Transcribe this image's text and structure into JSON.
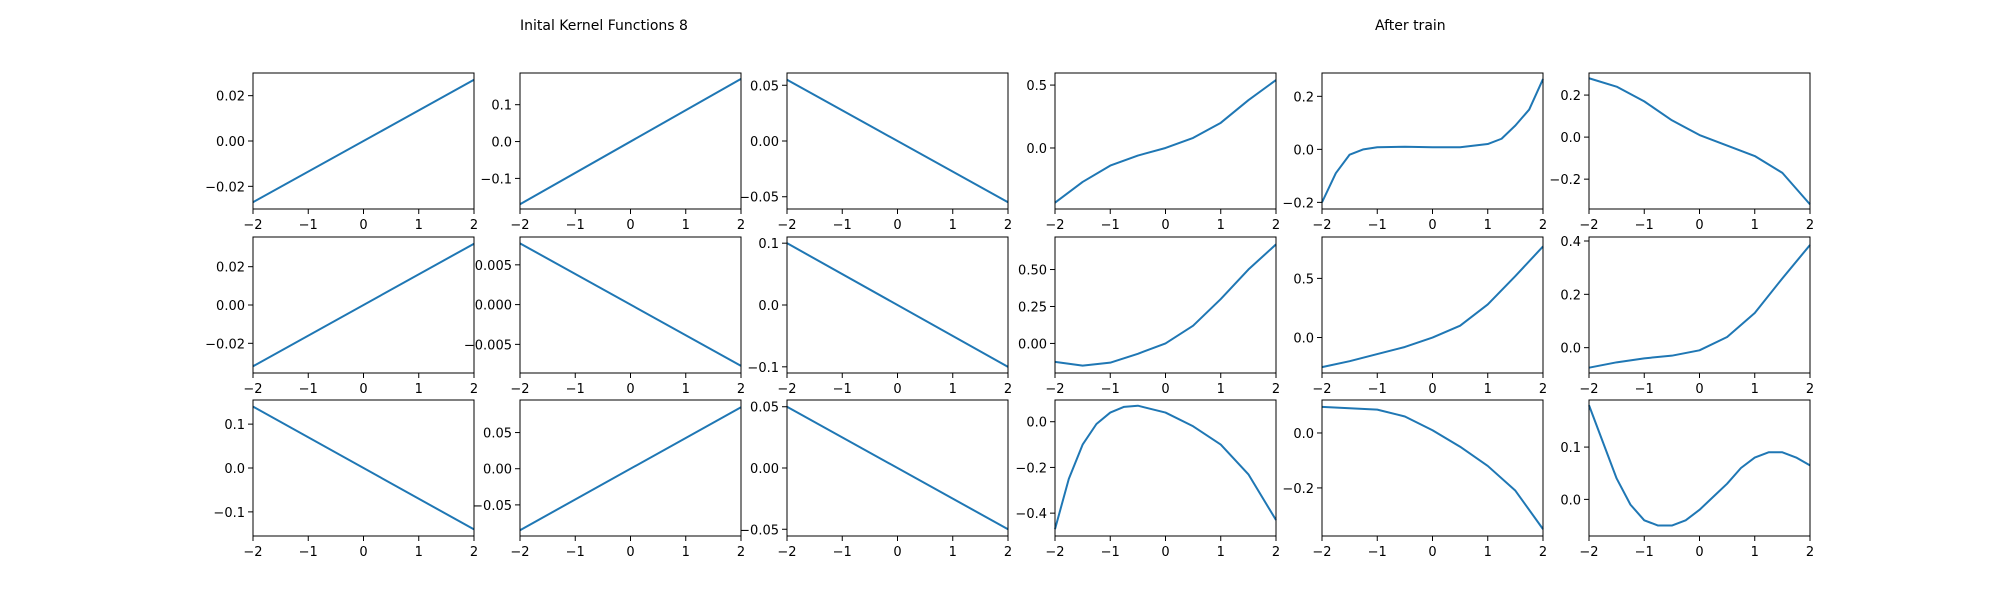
{
  "titles": {
    "left": "Inital Kernel Functions 8",
    "right": "After train"
  },
  "style": {
    "line_color": "#1f77b4",
    "axes_color": "#000000",
    "background": "#ffffff"
  },
  "chart_data": [
    {
      "type": "line",
      "panel": "r1c1",
      "xlim": [
        -2,
        2
      ],
      "ylim": [
        -0.03,
        0.03
      ],
      "xticks": [
        -2,
        -1,
        0,
        1,
        2
      ],
      "yticks": [
        -0.02,
        0.0,
        0.02
      ],
      "ytick_labels": [
        "−0.02",
        "0.00",
        "0.02"
      ],
      "x": [
        -2,
        2
      ],
      "y": [
        -0.027,
        0.027
      ]
    },
    {
      "type": "line",
      "panel": "r1c2",
      "xlim": [
        -2,
        2
      ],
      "ylim": [
        -0.183,
        0.186
      ],
      "xticks": [
        -2,
        -1,
        0,
        1,
        2
      ],
      "yticks": [
        -0.1,
        0.0,
        0.1
      ],
      "ytick_labels": [
        "−0.1",
        "0.0",
        "0.1"
      ],
      "x": [
        -2,
        2
      ],
      "y": [
        -0.17,
        0.17
      ]
    },
    {
      "type": "line",
      "panel": "r1c3",
      "xlim": [
        -2,
        2
      ],
      "ylim": [
        -0.061,
        0.061
      ],
      "xticks": [
        -2,
        -1,
        0,
        1,
        2
      ],
      "yticks": [
        -0.05,
        0.0,
        0.05
      ],
      "ytick_labels": [
        "−0.05",
        "0.00",
        "0.05"
      ],
      "x": [
        -2,
        2
      ],
      "y": [
        0.055,
        -0.055
      ]
    },
    {
      "type": "line",
      "panel": "r1c4",
      "xlim": [
        -2,
        2
      ],
      "ylim": [
        -0.485,
        0.596
      ],
      "xticks": [
        -2,
        -1,
        0,
        1,
        2
      ],
      "yticks": [
        0.0,
        0.5
      ],
      "ytick_labels": [
        "0.0",
        "0.5"
      ],
      "x": [
        -2,
        -1.5,
        -1,
        -0.5,
        0,
        0.5,
        1,
        1.5,
        2
      ],
      "y": [
        -0.435,
        -0.27,
        -0.14,
        -0.06,
        0.0,
        0.08,
        0.2,
        0.38,
        0.54
      ]
    },
    {
      "type": "line",
      "panel": "r1c5",
      "xlim": [
        -2,
        2
      ],
      "ylim": [
        -0.225,
        0.288
      ],
      "xticks": [
        -2,
        -1,
        0,
        1,
        2
      ],
      "yticks": [
        -0.2,
        0.0,
        0.2
      ],
      "ytick_labels": [
        "−0.2",
        "0.0",
        "0.2"
      ],
      "x": [
        -2,
        -1.75,
        -1.5,
        -1.25,
        -1,
        -0.5,
        0,
        0.5,
        1,
        1.25,
        1.5,
        1.75,
        2
      ],
      "y": [
        -0.2,
        -0.09,
        -0.02,
        0.0,
        0.008,
        0.01,
        0.008,
        0.008,
        0.02,
        0.04,
        0.09,
        0.15,
        0.265
      ]
    },
    {
      "type": "line",
      "panel": "r1c6",
      "xlim": [
        -2,
        2
      ],
      "ylim": [
        -0.342,
        0.305
      ],
      "xticks": [
        -2,
        -1,
        0,
        1,
        2
      ],
      "yticks": [
        -0.2,
        0.0,
        0.2
      ],
      "ytick_labels": [
        "−0.2",
        "0.0",
        "0.2"
      ],
      "x": [
        -2,
        -1.5,
        -1,
        -0.5,
        0,
        0.5,
        1,
        1.5,
        2
      ],
      "y": [
        0.28,
        0.24,
        0.17,
        0.08,
        0.01,
        -0.04,
        -0.09,
        -0.17,
        -0.32
      ]
    },
    {
      "type": "line",
      "panel": "r2c1",
      "xlim": [
        -2,
        2
      ],
      "ylim": [
        -0.0355,
        0.0355
      ],
      "xticks": [
        -2,
        -1,
        0,
        1,
        2
      ],
      "yticks": [
        -0.02,
        0.0,
        0.02
      ],
      "ytick_labels": [
        "−0.02",
        "0.00",
        "0.02"
      ],
      "x": [
        -2,
        2
      ],
      "y": [
        -0.032,
        0.032
      ]
    },
    {
      "type": "line",
      "panel": "r2c2",
      "xlim": [
        -2,
        2
      ],
      "ylim": [
        -0.0086,
        0.0085
      ],
      "xticks": [
        -2,
        -1,
        0,
        1,
        2
      ],
      "yticks": [
        -0.005,
        0.0,
        0.005
      ],
      "ytick_labels": [
        "−0.005",
        "0.000",
        "0.005"
      ],
      "x": [
        -2,
        2
      ],
      "y": [
        0.0077,
        -0.0077
      ]
    },
    {
      "type": "line",
      "panel": "r2c3",
      "xlim": [
        -2,
        2
      ],
      "ylim": [
        -0.11,
        0.11
      ],
      "xticks": [
        -2,
        -1,
        0,
        1,
        2
      ],
      "yticks": [
        -0.1,
        0.0,
        0.1
      ],
      "ytick_labels": [
        "−0.1",
        "0.0",
        "0.1"
      ],
      "x": [
        -2,
        2
      ],
      "y": [
        0.1,
        -0.1
      ]
    },
    {
      "type": "line",
      "panel": "r2c4",
      "xlim": [
        -2,
        2
      ],
      "ylim": [
        -0.2,
        0.72
      ],
      "xticks": [
        -2,
        -1,
        0,
        1,
        2
      ],
      "yticks": [
        0.0,
        0.25,
        0.5
      ],
      "ytick_labels": [
        "0.00",
        "0.25",
        "0.50"
      ],
      "x": [
        -2,
        -1.5,
        -1,
        -0.5,
        0,
        0.5,
        1,
        1.5,
        2
      ],
      "y": [
        -0.125,
        -0.15,
        -0.13,
        -0.07,
        0.0,
        0.12,
        0.3,
        0.5,
        0.67
      ]
    },
    {
      "type": "line",
      "panel": "r2c5",
      "xlim": [
        -2,
        2
      ],
      "ylim": [
        -0.3,
        0.85
      ],
      "xticks": [
        -2,
        -1,
        0,
        1,
        2
      ],
      "yticks": [
        0.0,
        0.5
      ],
      "ytick_labels": [
        "0.0",
        "0.5"
      ],
      "x": [
        -2,
        -1.5,
        -1,
        -0.5,
        0,
        0.5,
        1,
        1.5,
        2
      ],
      "y": [
        -0.25,
        -0.2,
        -0.14,
        -0.08,
        0.0,
        0.1,
        0.28,
        0.52,
        0.77
      ]
    },
    {
      "type": "line",
      "panel": "r2c6",
      "xlim": [
        -2,
        2
      ],
      "ylim": [
        -0.095,
        0.415
      ],
      "xticks": [
        -2,
        -1,
        0,
        1,
        2
      ],
      "yticks": [
        0.0,
        0.2,
        0.4
      ],
      "ytick_labels": [
        "0.0",
        "0.2",
        "0.4"
      ],
      "x": [
        -2,
        -1.5,
        -1,
        -0.5,
        0,
        0.5,
        1,
        1.5,
        2
      ],
      "y": [
        -0.075,
        -0.055,
        -0.04,
        -0.03,
        -0.01,
        0.04,
        0.13,
        0.26,
        0.385
      ]
    },
    {
      "type": "line",
      "panel": "r3c1",
      "xlim": [
        -2,
        2
      ],
      "ylim": [
        -0.155,
        0.155
      ],
      "xticks": [
        -2,
        -1,
        0,
        1,
        2
      ],
      "yticks": [
        -0.1,
        0.0,
        0.1
      ],
      "ytick_labels": [
        "−0.1",
        "0.0",
        "0.1"
      ],
      "x": [
        -2,
        2
      ],
      "y": [
        0.14,
        -0.14
      ]
    },
    {
      "type": "line",
      "panel": "r3c2",
      "xlim": [
        -2,
        2
      ],
      "ylim": [
        -0.093,
        0.095
      ],
      "xticks": [
        -2,
        -1,
        0,
        1,
        2
      ],
      "yticks": [
        -0.05,
        0.0,
        0.05
      ],
      "ytick_labels": [
        "−0.05",
        "0.00",
        "0.05"
      ],
      "x": [
        -2,
        2
      ],
      "y": [
        -0.085,
        0.085
      ]
    },
    {
      "type": "line",
      "panel": "r3c3",
      "xlim": [
        -2,
        2
      ],
      "ylim": [
        -0.0555,
        0.0555
      ],
      "xticks": [
        -2,
        -1,
        0,
        1,
        2
      ],
      "yticks": [
        -0.05,
        0.0,
        0.05
      ],
      "ytick_labels": [
        "−0.05",
        "0.00",
        "0.05"
      ],
      "x": [
        -2,
        2
      ],
      "y": [
        0.05,
        -0.05
      ]
    },
    {
      "type": "line",
      "panel": "r3c4",
      "xlim": [
        -2,
        2
      ],
      "ylim": [
        -0.5,
        0.095
      ],
      "xticks": [
        -2,
        -1,
        0,
        1,
        2
      ],
      "yticks": [
        -0.4,
        -0.2,
        0.0
      ],
      "ytick_labels": [
        "−0.4",
        "−0.2",
        "0.0"
      ],
      "x": [
        -2,
        -1.75,
        -1.5,
        -1.25,
        -1,
        -0.75,
        -0.5,
        0,
        0.5,
        1,
        1.5,
        2
      ],
      "y": [
        -0.47,
        -0.25,
        -0.1,
        -0.01,
        0.04,
        0.065,
        0.07,
        0.04,
        -0.02,
        -0.1,
        -0.23,
        -0.43
      ]
    },
    {
      "type": "line",
      "panel": "r3c5",
      "xlim": [
        -2,
        2
      ],
      "ylim": [
        -0.375,
        0.12
      ],
      "xticks": [
        -2,
        -1,
        0,
        1,
        2
      ],
      "yticks": [
        -0.2,
        0.0
      ],
      "ytick_labels": [
        "−0.2",
        "0.0"
      ],
      "x": [
        -2,
        -1.5,
        -1,
        -0.5,
        0,
        0.5,
        1,
        1.5,
        2
      ],
      "y": [
        0.095,
        0.09,
        0.085,
        0.06,
        0.01,
        -0.05,
        -0.12,
        -0.21,
        -0.35
      ]
    },
    {
      "type": "line",
      "panel": "r3c6",
      "xlim": [
        -2,
        2
      ],
      "ylim": [
        -0.07,
        0.19
      ],
      "xticks": [
        -2,
        -1,
        0,
        1,
        2
      ],
      "yticks": [
        0.0,
        0.1
      ],
      "ytick_labels": [
        "0.0",
        "0.1"
      ],
      "x": [
        -2,
        -1.75,
        -1.5,
        -1.25,
        -1,
        -0.75,
        -0.5,
        -0.25,
        0,
        0.25,
        0.5,
        0.75,
        1,
        1.25,
        1.5,
        1.75,
        2
      ],
      "y": [
        0.18,
        0.11,
        0.04,
        -0.01,
        -0.04,
        -0.05,
        -0.05,
        -0.04,
        -0.02,
        0.005,
        0.03,
        0.06,
        0.08,
        0.09,
        0.09,
        0.08,
        0.065
      ]
    }
  ]
}
